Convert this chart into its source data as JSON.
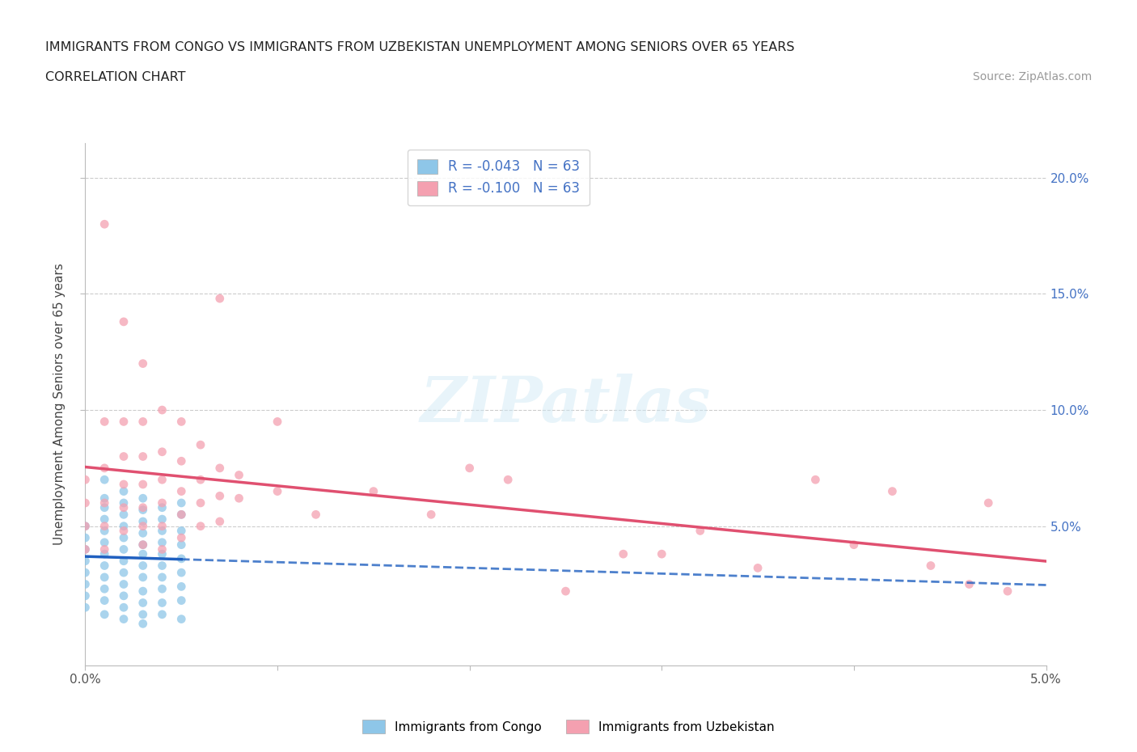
{
  "title_line1": "IMMIGRANTS FROM CONGO VS IMMIGRANTS FROM UZBEKISTAN UNEMPLOYMENT AMONG SENIORS OVER 65 YEARS",
  "title_line2": "CORRELATION CHART",
  "source_text": "Source: ZipAtlas.com",
  "ylabel": "Unemployment Among Seniors over 65 years",
  "legend_entries": [
    {
      "label": "R = -0.043   N = 63",
      "color": "#6baed6"
    },
    {
      "label": "R = -0.100   N = 63",
      "color": "#f4a0b0"
    }
  ],
  "legend_labels_bottom": [
    "Immigrants from Congo",
    "Immigrants from Uzbekistan"
  ],
  "xlim": [
    0.0,
    0.05
  ],
  "ylim": [
    -0.01,
    0.215
  ],
  "color_congo": "#8ec6e8",
  "color_uzbekistan": "#f4a0b0",
  "color_congo_line": "#2060c0",
  "color_uzbekistan_line": "#e05070",
  "background_color": "#ffffff",
  "watermark_text": "ZIPatlas",
  "congo_data": [
    [
      0.0,
      0.05
    ],
    [
      0.0,
      0.045
    ],
    [
      0.0,
      0.04
    ],
    [
      0.0,
      0.035
    ],
    [
      0.0,
      0.03
    ],
    [
      0.0,
      0.025
    ],
    [
      0.0,
      0.02
    ],
    [
      0.0,
      0.015
    ],
    [
      0.001,
      0.07
    ],
    [
      0.001,
      0.062
    ],
    [
      0.001,
      0.058
    ],
    [
      0.001,
      0.053
    ],
    [
      0.001,
      0.048
    ],
    [
      0.001,
      0.043
    ],
    [
      0.001,
      0.038
    ],
    [
      0.001,
      0.033
    ],
    [
      0.001,
      0.028
    ],
    [
      0.001,
      0.023
    ],
    [
      0.001,
      0.018
    ],
    [
      0.001,
      0.012
    ],
    [
      0.002,
      0.065
    ],
    [
      0.002,
      0.06
    ],
    [
      0.002,
      0.055
    ],
    [
      0.002,
      0.05
    ],
    [
      0.002,
      0.045
    ],
    [
      0.002,
      0.04
    ],
    [
      0.002,
      0.035
    ],
    [
      0.002,
      0.03
    ],
    [
      0.002,
      0.025
    ],
    [
      0.002,
      0.02
    ],
    [
      0.002,
      0.015
    ],
    [
      0.002,
      0.01
    ],
    [
      0.003,
      0.062
    ],
    [
      0.003,
      0.057
    ],
    [
      0.003,
      0.052
    ],
    [
      0.003,
      0.047
    ],
    [
      0.003,
      0.042
    ],
    [
      0.003,
      0.038
    ],
    [
      0.003,
      0.033
    ],
    [
      0.003,
      0.028
    ],
    [
      0.003,
      0.022
    ],
    [
      0.003,
      0.017
    ],
    [
      0.003,
      0.012
    ],
    [
      0.003,
      0.008
    ],
    [
      0.004,
      0.058
    ],
    [
      0.004,
      0.053
    ],
    [
      0.004,
      0.048
    ],
    [
      0.004,
      0.043
    ],
    [
      0.004,
      0.038
    ],
    [
      0.004,
      0.033
    ],
    [
      0.004,
      0.028
    ],
    [
      0.004,
      0.023
    ],
    [
      0.004,
      0.017
    ],
    [
      0.004,
      0.012
    ],
    [
      0.005,
      0.06
    ],
    [
      0.005,
      0.055
    ],
    [
      0.005,
      0.048
    ],
    [
      0.005,
      0.042
    ],
    [
      0.005,
      0.036
    ],
    [
      0.005,
      0.03
    ],
    [
      0.005,
      0.024
    ],
    [
      0.005,
      0.018
    ],
    [
      0.005,
      0.01
    ]
  ],
  "uzbekistan_data": [
    [
      0.0,
      0.07
    ],
    [
      0.0,
      0.06
    ],
    [
      0.0,
      0.05
    ],
    [
      0.0,
      0.04
    ],
    [
      0.001,
      0.18
    ],
    [
      0.001,
      0.095
    ],
    [
      0.001,
      0.075
    ],
    [
      0.001,
      0.06
    ],
    [
      0.001,
      0.05
    ],
    [
      0.001,
      0.04
    ],
    [
      0.002,
      0.138
    ],
    [
      0.002,
      0.095
    ],
    [
      0.002,
      0.08
    ],
    [
      0.002,
      0.068
    ],
    [
      0.002,
      0.058
    ],
    [
      0.002,
      0.048
    ],
    [
      0.003,
      0.12
    ],
    [
      0.003,
      0.095
    ],
    [
      0.003,
      0.08
    ],
    [
      0.003,
      0.068
    ],
    [
      0.003,
      0.058
    ],
    [
      0.003,
      0.05
    ],
    [
      0.003,
      0.042
    ],
    [
      0.004,
      0.1
    ],
    [
      0.004,
      0.082
    ],
    [
      0.004,
      0.07
    ],
    [
      0.004,
      0.06
    ],
    [
      0.004,
      0.05
    ],
    [
      0.004,
      0.04
    ],
    [
      0.005,
      0.095
    ],
    [
      0.005,
      0.078
    ],
    [
      0.005,
      0.065
    ],
    [
      0.005,
      0.055
    ],
    [
      0.005,
      0.045
    ],
    [
      0.006,
      0.085
    ],
    [
      0.006,
      0.07
    ],
    [
      0.006,
      0.06
    ],
    [
      0.006,
      0.05
    ],
    [
      0.007,
      0.148
    ],
    [
      0.007,
      0.075
    ],
    [
      0.007,
      0.063
    ],
    [
      0.007,
      0.052
    ],
    [
      0.008,
      0.072
    ],
    [
      0.008,
      0.062
    ],
    [
      0.01,
      0.095
    ],
    [
      0.01,
      0.065
    ],
    [
      0.012,
      0.055
    ],
    [
      0.015,
      0.065
    ],
    [
      0.018,
      0.055
    ],
    [
      0.02,
      0.075
    ],
    [
      0.022,
      0.07
    ],
    [
      0.025,
      0.022
    ],
    [
      0.028,
      0.038
    ],
    [
      0.03,
      0.038
    ],
    [
      0.032,
      0.048
    ],
    [
      0.035,
      0.032
    ],
    [
      0.038,
      0.07
    ],
    [
      0.04,
      0.042
    ],
    [
      0.042,
      0.065
    ],
    [
      0.044,
      0.033
    ],
    [
      0.046,
      0.025
    ],
    [
      0.047,
      0.06
    ],
    [
      0.048,
      0.022
    ]
  ]
}
